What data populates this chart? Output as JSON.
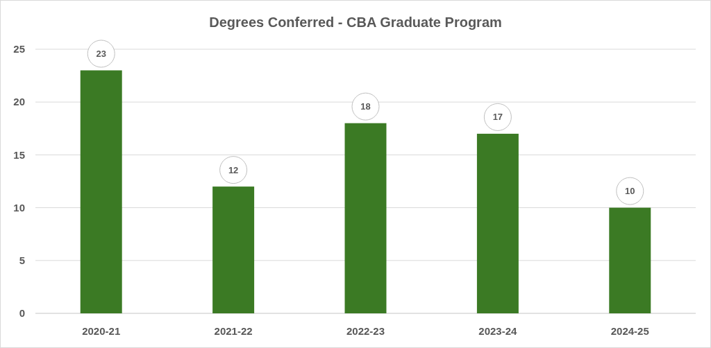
{
  "chart_data": {
    "type": "bar",
    "title": "Degrees Conferred - CBA Graduate Program",
    "categories": [
      "2020-21",
      "2021-22",
      "2022-23",
      "2023-24",
      "2024-25"
    ],
    "values": [
      23,
      12,
      18,
      17,
      10
    ],
    "color": "#3b7a24",
    "ylim": [
      0,
      25
    ],
    "yticks": [
      0,
      5,
      10,
      15,
      20,
      25
    ],
    "grid": "y",
    "data_labels": true
  }
}
